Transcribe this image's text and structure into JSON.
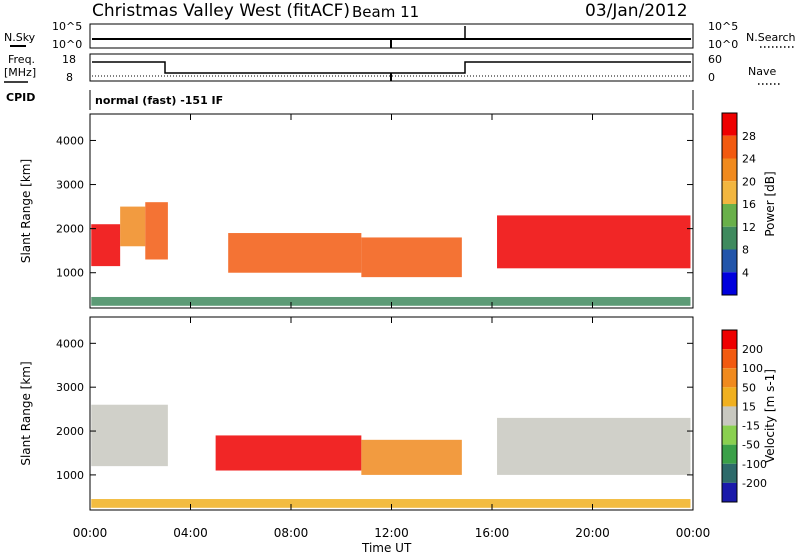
{
  "header": {
    "station": "Christmas Valley West (fitACF)",
    "beam": "Beam 11",
    "date": "03/Jan/2012"
  },
  "strip": {
    "left_sky": "N.Sky",
    "left_sky_hi": "10^5",
    "left_sky_lo": "10^0",
    "right_sky_hi": "10^5",
    "right_sky_lo": "10^0",
    "right_search": "N.Search",
    "left_freq": "Freq.",
    "left_freq_unit": "[MHz]",
    "freq_hi": "18",
    "freq_lo": "8",
    "nave_hi": "60",
    "nave_lo": "0",
    "right_nave": "Nave",
    "cpid_label": "CPID",
    "cpid_text": "normal (fast) -151 IF"
  },
  "colors": {
    "power": [
      "#0000dd",
      "#2255aa",
      "#3f8a5e",
      "#69b04a",
      "#f2b640",
      "#f08a1e",
      "#f25a10",
      "#ee0000"
    ],
    "velocity": [
      "#1a1aaa",
      "#2d6a6a",
      "#3aa048",
      "#8ad050",
      "#c8c8c0",
      "#f0b020",
      "#f08a1e",
      "#f25a10",
      "#ee0000"
    ]
  },
  "chart_data": [
    {
      "type": "heatmap",
      "quantity": "Power",
      "ylabel": "Slant Range [km]",
      "ytick_labels": [
        "1000",
        "2000",
        "3000",
        "4000"
      ],
      "ylim": [
        200,
        4600
      ],
      "xlim_hours": [
        0,
        24
      ],
      "colorbar_label": "Power [dB]",
      "colorbar_ticks": [
        "4",
        "8",
        "12",
        "16",
        "20",
        "24",
        "28"
      ],
      "bands": [
        {
          "t0": 0.05,
          "t1": 1.2,
          "r0": 1150,
          "r1": 2100,
          "level": 7
        },
        {
          "t0": 1.2,
          "t1": 2.2,
          "r0": 1600,
          "r1": 2500,
          "level": 5
        },
        {
          "t0": 2.2,
          "t1": 3.1,
          "r0": 1300,
          "r1": 2600,
          "level": 6
        },
        {
          "t0": 5.5,
          "t1": 10.8,
          "r0": 1000,
          "r1": 1900,
          "level": 6
        },
        {
          "t0": 10.8,
          "t1": 14.8,
          "r0": 900,
          "r1": 1800,
          "level": 6
        },
        {
          "t0": 16.2,
          "t1": 23.9,
          "r0": 1100,
          "r1": 2300,
          "level": 7
        },
        {
          "t0": 0.05,
          "t1": 23.9,
          "r0": 250,
          "r1": 450,
          "level": 2
        }
      ]
    },
    {
      "type": "heatmap",
      "quantity": "Velocity",
      "ylabel": "Slant Range [km]",
      "xlabel": "Time UT",
      "ytick_labels": [
        "1000",
        "2000",
        "3000",
        "4000"
      ],
      "xtick_labels": [
        "00:00",
        "04:00",
        "08:00",
        "12:00",
        "16:00",
        "20:00",
        "00:00"
      ],
      "ylim": [
        200,
        4600
      ],
      "xlim_hours": [
        0,
        24
      ],
      "colorbar_label": "Velocity [m s-1]",
      "colorbar_ticks": [
        "200",
        "100",
        "50",
        "15",
        "-15",
        "-50",
        "-100",
        "-200"
      ],
      "bands": [
        {
          "t0": 0.05,
          "t1": 3.1,
          "r0": 1200,
          "r1": 2600,
          "level": 4
        },
        {
          "t0": 5.0,
          "t1": 10.8,
          "r0": 1100,
          "r1": 1900,
          "level": 8
        },
        {
          "t0": 10.8,
          "t1": 14.8,
          "r0": 1000,
          "r1": 1800,
          "level": 6
        },
        {
          "t0": 16.2,
          "t1": 23.9,
          "r0": 1000,
          "r1": 2300,
          "level": 4
        },
        {
          "t0": 0.05,
          "t1": 23.9,
          "r0": 250,
          "r1": 450,
          "level": 5
        }
      ]
    }
  ]
}
